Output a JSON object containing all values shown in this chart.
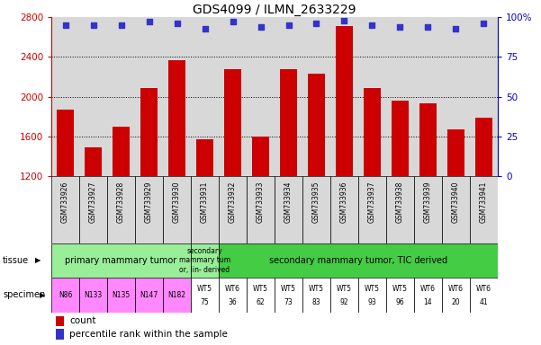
{
  "title": "GDS4099 / ILMN_2633229",
  "samples": [
    "GSM733926",
    "GSM733927",
    "GSM733928",
    "GSM733929",
    "GSM733930",
    "GSM733931",
    "GSM733932",
    "GSM733933",
    "GSM733934",
    "GSM733935",
    "GSM733936",
    "GSM733937",
    "GSM733938",
    "GSM733939",
    "GSM733940",
    "GSM733941"
  ],
  "counts": [
    1870,
    1490,
    1700,
    2090,
    2370,
    1570,
    2280,
    1600,
    2280,
    2230,
    2710,
    2090,
    1960,
    1930,
    1670,
    1790
  ],
  "percentile": [
    95,
    95,
    95,
    97,
    96,
    93,
    97,
    94,
    95,
    96,
    98,
    95,
    94,
    94,
    93,
    96
  ],
  "ylim_left": [
    1200,
    2800
  ],
  "ylim_right": [
    0,
    100
  ],
  "bar_color": "#cc0000",
  "dot_color": "#3333cc",
  "bar_bottom": 1200,
  "bg_color": "#d8d8d8",
  "right_axis_color": "#0000cc",
  "left_axis_color": "#cc0000",
  "right_ticks": [
    0,
    25,
    50,
    75,
    100
  ],
  "left_ticks": [
    1200,
    1600,
    2000,
    2400,
    2800
  ],
  "tissue_groups": [
    {
      "label": "primary mammary tumor",
      "start": 0,
      "end": 4,
      "color": "#99ee99"
    },
    {
      "label": "secondary\nmammary tum\nor, lin- derived",
      "start": 5,
      "end": 5,
      "color": "#99ee99"
    },
    {
      "label": "secondary mammary tumor, TIC derived",
      "start": 6,
      "end": 15,
      "color": "#44cc44"
    }
  ],
  "specimen_top": [
    "N86",
    "N133",
    "N135",
    "N147",
    "N182",
    "WT5",
    "WT6",
    "WT5",
    "WT5",
    "WT5",
    "WT5",
    "WT5",
    "WT5",
    "WT6",
    "WT6",
    "WT6"
  ],
  "specimen_bot": [
    "",
    "",
    "",
    "",
    "",
    "75",
    "36",
    "62",
    "73",
    "83",
    "92",
    "93",
    "96",
    "14",
    "20",
    "41"
  ],
  "specimen_pink": [
    0,
    1,
    2,
    3,
    4
  ],
  "specimen_white": [
    5,
    6,
    7,
    8,
    9,
    10,
    11,
    12,
    13,
    14,
    15
  ],
  "pink_color": "#ff88ff",
  "white_color": "#ffffff",
  "label_bg_color": "#d8d8d8"
}
